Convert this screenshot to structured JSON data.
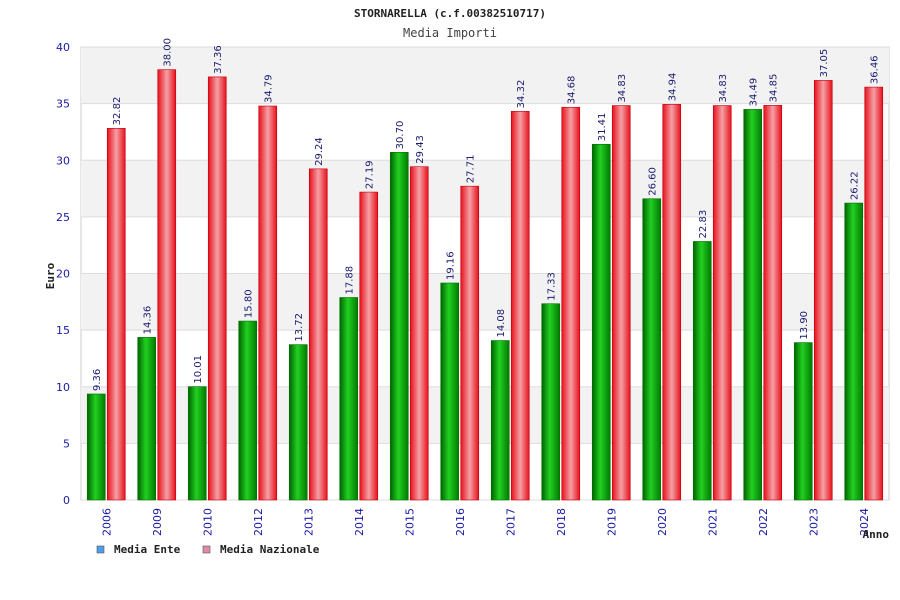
{
  "chart_data": {
    "type": "bar",
    "title": "STORNARELLA (c.f.00382510717)",
    "subtitle": "Media Importi",
    "xlabel": "Anno",
    "ylabel": "Euro",
    "ylim": [
      0,
      40
    ],
    "yticks": [
      "0",
      "5",
      "10",
      "15",
      "20",
      "25",
      "30",
      "35",
      "40"
    ],
    "grid": true,
    "legend_position": "bottom-left",
    "categories": [
      "2006",
      "2009",
      "2010",
      "2012",
      "2013",
      "2014",
      "2015",
      "2016",
      "2017",
      "2018",
      "2019",
      "2020",
      "2021",
      "2022",
      "2023",
      "2024"
    ],
    "series": [
      {
        "name": "Media Ente",
        "color": "#00b000",
        "legend_color": "#4f9fe8",
        "values": [
          9.36,
          14.36,
          10.01,
          15.8,
          13.72,
          17.88,
          30.7,
          19.16,
          14.08,
          17.33,
          31.41,
          26.6,
          22.83,
          34.49,
          13.9,
          26.22
        ],
        "labels": [
          "9.36",
          "14.36",
          "10.01",
          "15.80",
          "13.72",
          "17.88",
          "30.70",
          "19.16",
          "14.08",
          "17.33",
          "31.41",
          "26.60",
          "22.83",
          "34.49",
          "13.90",
          "26.22"
        ]
      },
      {
        "name": "Media Nazionale",
        "color": "#e8101a",
        "legend_color": "#e08aa8",
        "values": [
          32.82,
          38.0,
          37.36,
          34.79,
          29.24,
          27.19,
          29.43,
          27.71,
          34.32,
          34.68,
          34.83,
          34.94,
          34.83,
          34.85,
          37.05,
          36.46
        ],
        "labels": [
          "32.82",
          "38.00",
          "37.36",
          "34.79",
          "29.24",
          "27.19",
          "29.43",
          "27.71",
          "34.32",
          "34.68",
          "34.83",
          "34.94",
          "34.83",
          "34.85",
          "37.05",
          "36.46"
        ]
      }
    ]
  }
}
